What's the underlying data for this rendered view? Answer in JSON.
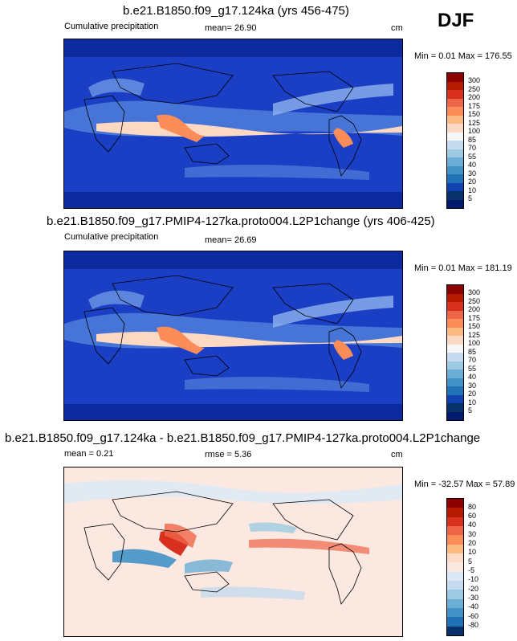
{
  "season": "DJF",
  "panels": [
    {
      "title": "b.e21.B1850.f09_g17.124ka (yrs 456-475)",
      "left_label": "Cumulative precipitation",
      "stat_label": "mean=  26.90",
      "units": "cm",
      "minmax": "Min =  0.01 Max = 176.55",
      "colorbar": {
        "labels": [
          "300",
          "250",
          "200",
          "175",
          "150",
          "125",
          "100",
          "85",
          "70",
          "55",
          "40",
          "30",
          "20",
          "10",
          "5"
        ],
        "colors": [
          "#8b0000",
          "#b51a00",
          "#d7301f",
          "#ef6548",
          "#fc8d59",
          "#fdbb84",
          "#fdd9c4",
          "#f7f7f7",
          "#c6dbef",
          "#9ecae1",
          "#6baed6",
          "#4292c6",
          "#2171b5",
          "#1143b0",
          "#08306b",
          "#001a6e"
        ]
      }
    },
    {
      "title": "b.e21.B1850.f09_g17.PMIP4-127ka.proto004.L2P1change (yrs 406-425)",
      "left_label": "Cumulative precipitation",
      "stat_label": "mean=  26.69",
      "units": "cm",
      "minmax": "Min =  0.01 Max = 181.19",
      "colorbar": {
        "labels": [
          "300",
          "250",
          "200",
          "175",
          "150",
          "125",
          "100",
          "85",
          "70",
          "55",
          "40",
          "30",
          "20",
          "10",
          "5"
        ],
        "colors": [
          "#8b0000",
          "#b51a00",
          "#d7301f",
          "#ef6548",
          "#fc8d59",
          "#fdbb84",
          "#fdd9c4",
          "#f7f7f7",
          "#c6dbef",
          "#9ecae1",
          "#6baed6",
          "#4292c6",
          "#2171b5",
          "#1143b0",
          "#08306b",
          "#001a6e"
        ]
      }
    },
    {
      "title": "b.e21.B1850.f09_g17.124ka - b.e21.B1850.f09_g17.PMIP4-127ka.proto004.L2P1change",
      "left_label": "mean =  0.21",
      "stat_label": "rmse =  5.36",
      "units": "cm",
      "minmax": "Min = -32.57 Max = 57.89",
      "colorbar": {
        "labels": [
          "80",
          "60",
          "40",
          "30",
          "20",
          "10",
          "5",
          "-5",
          "-10",
          "-20",
          "-30",
          "-40",
          "-60",
          "-80"
        ],
        "colors": [
          "#8b0000",
          "#b51a00",
          "#d7301f",
          "#ef6548",
          "#fc8d59",
          "#fdbb84",
          "#fddbc7",
          "#fbe8e0",
          "#dbe9f6",
          "#c6dbef",
          "#9ecae1",
          "#6baed6",
          "#4292c6",
          "#2171b5",
          "#08306b"
        ]
      }
    }
  ]
}
